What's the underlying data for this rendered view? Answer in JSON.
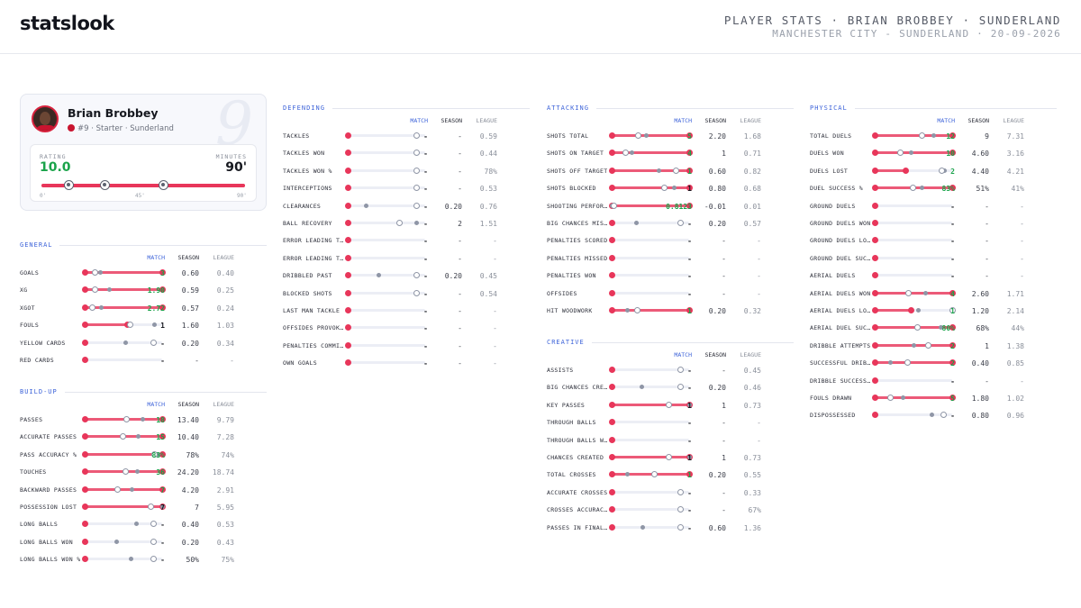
{
  "header": {
    "logo": "statslook",
    "title": "PLAYER STATS · BRIAN BROBBEY · SUNDERLAND",
    "subtitle": "MANCHESTER CITY - SUNDERLAND · 20-09-2026"
  },
  "player": {
    "name": "Brian Brobbey",
    "number": "9",
    "meta": "#9 · Starter · Sunderland",
    "rating_label": "RATING",
    "rating": "10.0",
    "minutes_label": "MINUTES",
    "minutes": "90'",
    "timeline_ticks": [
      "0'",
      "45'",
      "90'"
    ],
    "timeline_fill": 1.0,
    "goal_minutes": [
      12,
      28,
      54
    ],
    "icons": [
      "avatar",
      "club-crest-icon",
      "ball-icon"
    ]
  },
  "columns": {
    "match": "MATCH",
    "season": "SEASON",
    "league": "LEAGUE"
  },
  "colors": {
    "accent_blue": "#3d63d9",
    "bar_red": "#e8365a",
    "positive_green": "#1aa34a"
  },
  "sections": {
    "general": {
      "title": "GENERAL",
      "rows": [
        {
          "label": "GOALS",
          "match": "3",
          "season": "0.60",
          "league": "0.40",
          "good": true,
          "m": 1.0,
          "s": 0.2,
          "l": 0.13
        },
        {
          "label": "XG",
          "match": "1.90",
          "season": "0.59",
          "league": "0.25",
          "good": true,
          "m": 1.0,
          "s": 0.31,
          "l": 0.13
        },
        {
          "label": "XGOT",
          "match": "2.72",
          "season": "0.57",
          "league": "0.24",
          "good": true,
          "m": 1.0,
          "s": 0.21,
          "l": 0.09
        },
        {
          "label": "FOULS",
          "match": "1",
          "season": "1.60",
          "league": "1.03",
          "good": false,
          "m": 0.55,
          "s": 0.9,
          "l": 0.58
        },
        {
          "label": "YELLOW CARDS",
          "match": "-",
          "season": "0.20",
          "league": "0.34",
          "good": false,
          "m": 0,
          "s": 0.52,
          "l": 0.88
        },
        {
          "label": "RED CARDS",
          "match": "-",
          "season": "-",
          "league": "-",
          "good": false,
          "m": 0,
          "s": null,
          "l": null
        }
      ]
    },
    "buildup": {
      "title": "BUILD-UP",
      "rows": [
        {
          "label": "PASSES",
          "match": "18",
          "season": "13.40",
          "league": "9.79",
          "good": true,
          "m": 1.0,
          "s": 0.74,
          "l": 0.54
        },
        {
          "label": "ACCURATE PASSES",
          "match": "15",
          "season": "10.40",
          "league": "7.28",
          "good": true,
          "m": 1.0,
          "s": 0.69,
          "l": 0.49
        },
        {
          "label": "PASS ACCURACY %",
          "match": "83%",
          "season": "78%",
          "league": "74%",
          "good": true,
          "m": 1.0,
          "s": 0.94,
          "l": 0.89
        },
        {
          "label": "TOUCHES",
          "match": "36",
          "season": "24.20",
          "league": "18.74",
          "good": true,
          "m": 1.0,
          "s": 0.67,
          "l": 0.52
        },
        {
          "label": "BACKWARD PASSES",
          "match": "7",
          "season": "4.20",
          "league": "2.91",
          "good": true,
          "m": 1.0,
          "s": 0.6,
          "l": 0.42
        },
        {
          "label": "POSSESSION LOST",
          "match": "7",
          "season": "7",
          "league": "5.95",
          "good": false,
          "m": 1.0,
          "s": 1.0,
          "l": 0.85
        },
        {
          "label": "LONG BALLS",
          "match": "-",
          "season": "0.40",
          "league": "0.53",
          "good": false,
          "m": 0,
          "s": 0.66,
          "l": 0.88
        },
        {
          "label": "LONG BALLS WON",
          "match": "-",
          "season": "0.20",
          "league": "0.43",
          "good": false,
          "m": 0,
          "s": 0.41,
          "l": 0.88
        },
        {
          "label": "LONG BALLS WON %",
          "match": "-",
          "season": "50%",
          "league": "75%",
          "good": false,
          "m": 0,
          "s": 0.59,
          "l": 0.88
        }
      ]
    },
    "defending": {
      "title": "DEFENDING",
      "rows": [
        {
          "label": "TACKLES",
          "match": "-",
          "season": "-",
          "league": "0.59",
          "good": false,
          "m": 0,
          "s": null,
          "l": 0.88
        },
        {
          "label": "TACKLES WON",
          "match": "-",
          "season": "-",
          "league": "0.44",
          "good": false,
          "m": 0,
          "s": null,
          "l": 0.88
        },
        {
          "label": "TACKLES WON %",
          "match": "-",
          "season": "-",
          "league": "78%",
          "good": false,
          "m": 0,
          "s": null,
          "l": 0.88
        },
        {
          "label": "INTERCEPTIONS",
          "match": "-",
          "season": "-",
          "league": "0.53",
          "good": false,
          "m": 0,
          "s": null,
          "l": 0.88
        },
        {
          "label": "CLEARANCES",
          "match": "-",
          "season": "0.20",
          "league": "0.76",
          "good": false,
          "m": 0,
          "s": 0.23,
          "l": 0.88
        },
        {
          "label": "BALL RECOVERY",
          "match": "-",
          "season": "2",
          "league": "1.51",
          "good": false,
          "m": 0,
          "s": 0.88,
          "l": 0.66
        },
        {
          "label": "ERROR LEADING T…",
          "match": "-",
          "season": "-",
          "league": "-",
          "good": false,
          "m": 0,
          "s": null,
          "l": null
        },
        {
          "label": "ERROR LEADING T…",
          "match": "-",
          "season": "-",
          "league": "-",
          "good": false,
          "m": 0,
          "s": null,
          "l": null
        },
        {
          "label": "DRIBBLED PAST",
          "match": "-",
          "season": "0.20",
          "league": "0.45",
          "good": false,
          "m": 0,
          "s": 0.39,
          "l": 0.88
        },
        {
          "label": "BLOCKED SHOTS",
          "match": "-",
          "season": "-",
          "league": "0.54",
          "good": false,
          "m": 0,
          "s": null,
          "l": 0.88
        },
        {
          "label": "LAST MAN TACKLE",
          "match": "-",
          "season": "-",
          "league": "-",
          "good": false,
          "m": 0,
          "s": null,
          "l": null
        },
        {
          "label": "OFFSIDES PROVOK…",
          "match": "-",
          "season": "-",
          "league": "-",
          "good": false,
          "m": 0,
          "s": null,
          "l": null
        },
        {
          "label": "PENALTIES COMMI…",
          "match": "-",
          "season": "-",
          "league": "-",
          "good": false,
          "m": 0,
          "s": null,
          "l": null
        },
        {
          "label": "OWN GOALS",
          "match": "-",
          "season": "-",
          "league": "-",
          "good": false,
          "m": 0,
          "s": null,
          "l": null
        }
      ]
    },
    "attacking": {
      "title": "ATTACKING",
      "rows": [
        {
          "label": "SHOTS TOTAL",
          "match": "5",
          "season": "2.20",
          "league": "1.68",
          "good": true,
          "m": 1.0,
          "s": 0.44,
          "l": 0.34
        },
        {
          "label": "SHOTS ON TARGET",
          "match": "4",
          "season": "1",
          "league": "0.71",
          "good": true,
          "m": 1.0,
          "s": 0.25,
          "l": 0.18
        },
        {
          "label": "SHOTS OFF TARGET",
          "match": "1",
          "season": "0.60",
          "league": "0.82",
          "good": true,
          "m": 1.0,
          "s": 0.6,
          "l": 0.82
        },
        {
          "label": "SHOTS BLOCKED",
          "match": "1",
          "season": "0.80",
          "league": "0.68",
          "good": false,
          "m": 1.0,
          "s": 0.8,
          "l": 0.68
        },
        {
          "label": "SHOOTING PERFOR…",
          "match": "0.8123",
          "season": "-0.01",
          "league": "0.01",
          "good": true,
          "m": 1.0,
          "s": 0.0,
          "l": 0.02
        },
        {
          "label": "BIG CHANCES MIS…",
          "match": "-",
          "season": "0.20",
          "league": "0.57",
          "good": false,
          "m": 0,
          "s": 0.31,
          "l": 0.88
        },
        {
          "label": "PENALTIES SCORED",
          "match": "-",
          "season": "-",
          "league": "-",
          "good": false,
          "m": 0,
          "s": null,
          "l": null
        },
        {
          "label": "PENALTIES MISSED",
          "match": "-",
          "season": "-",
          "league": "-",
          "good": false,
          "m": 0,
          "s": null,
          "l": null
        },
        {
          "label": "PENALTIES WON",
          "match": "-",
          "season": "-",
          "league": "-",
          "good": false,
          "m": 0,
          "s": null,
          "l": null
        },
        {
          "label": "OFFSIDES",
          "match": "-",
          "season": "-",
          "league": "-",
          "good": false,
          "m": 0,
          "s": null,
          "l": null
        },
        {
          "label": "HIT WOODWORK",
          "match": "1",
          "season": "0.20",
          "league": "0.32",
          "good": true,
          "m": 1.0,
          "s": 0.2,
          "l": 0.32
        }
      ]
    },
    "creative": {
      "title": "CREATIVE",
      "rows": [
        {
          "label": "ASSISTS",
          "match": "-",
          "season": "-",
          "league": "0.45",
          "good": false,
          "m": 0,
          "s": null,
          "l": 0.88
        },
        {
          "label": "BIG CHANCES CRE…",
          "match": "-",
          "season": "0.20",
          "league": "0.46",
          "good": false,
          "m": 0,
          "s": 0.38,
          "l": 0.88
        },
        {
          "label": "KEY PASSES",
          "match": "1",
          "season": "1",
          "league": "0.73",
          "good": false,
          "m": 1.0,
          "s": 1.0,
          "l": 0.73
        },
        {
          "label": "THROUGH BALLS",
          "match": "-",
          "season": "-",
          "league": "-",
          "good": false,
          "m": 0,
          "s": null,
          "l": null
        },
        {
          "label": "THROUGH BALLS W…",
          "match": "-",
          "season": "-",
          "league": "-",
          "good": false,
          "m": 0,
          "s": null,
          "l": null
        },
        {
          "label": "CHANCES CREATED",
          "match": "1",
          "season": "1",
          "league": "0.73",
          "good": false,
          "m": 1.0,
          "s": 1.0,
          "l": 0.73
        },
        {
          "label": "TOTAL CROSSES",
          "match": "1",
          "season": "0.20",
          "league": "0.55",
          "good": true,
          "m": 1.0,
          "s": 0.2,
          "l": 0.55
        },
        {
          "label": "ACCURATE CROSSES",
          "match": "-",
          "season": "-",
          "league": "0.33",
          "good": false,
          "m": 0,
          "s": null,
          "l": 0.88
        },
        {
          "label": "CROSSES ACCURAC…",
          "match": "-",
          "season": "-",
          "league": "67%",
          "good": false,
          "m": 0,
          "s": null,
          "l": 0.88
        },
        {
          "label": "PASSES IN FINAL…",
          "match": "-",
          "season": "0.60",
          "league": "1.36",
          "good": false,
          "m": 0,
          "s": 0.39,
          "l": 0.88
        }
      ]
    },
    "physical": {
      "title": "PHYSICAL",
      "rows": [
        {
          "label": "TOTAL DUELS",
          "match": "12",
          "season": "9",
          "league": "7.31",
          "good": true,
          "m": 1.0,
          "s": 0.75,
          "l": 0.61
        },
        {
          "label": "DUELS WON",
          "match": "10",
          "season": "4.60",
          "league": "3.16",
          "good": true,
          "m": 1.0,
          "s": 0.46,
          "l": 0.32
        },
        {
          "label": "DUELS LOST",
          "match": "2",
          "season": "4.40",
          "league": "4.21",
          "good": true,
          "m": 0.4,
          "s": 0.9,
          "l": 0.86
        },
        {
          "label": "DUEL SUCCESS %",
          "match": "83%",
          "season": "51%",
          "league": "41%",
          "good": true,
          "m": 1.0,
          "s": 0.61,
          "l": 0.49
        },
        {
          "label": "GROUND DUELS",
          "match": "-",
          "season": "-",
          "league": "-",
          "good": false,
          "m": 0,
          "s": null,
          "l": null
        },
        {
          "label": "GROUND DUELS WON",
          "match": "-",
          "season": "-",
          "league": "-",
          "good": false,
          "m": 0,
          "s": null,
          "l": null
        },
        {
          "label": "GROUND DUELS LO…",
          "match": "-",
          "season": "-",
          "league": "-",
          "good": false,
          "m": 0,
          "s": null,
          "l": null
        },
        {
          "label": "GROUND DUEL SUC…",
          "match": "-",
          "season": "-",
          "league": "-",
          "good": false,
          "m": 0,
          "s": null,
          "l": null
        },
        {
          "label": "AERIAL DUELS",
          "match": "-",
          "season": "-",
          "league": "-",
          "good": false,
          "m": 0,
          "s": null,
          "l": null
        },
        {
          "label": "AERIAL DUELS WON",
          "match": "4",
          "season": "2.60",
          "league": "1.71",
          "good": true,
          "m": 1.0,
          "s": 0.65,
          "l": 0.43
        },
        {
          "label": "AERIAL DUELS LO…",
          "match": "1",
          "season": "1.20",
          "league": "2.14",
          "good": true,
          "m": 0.47,
          "s": 0.56,
          "l": 1.0
        },
        {
          "label": "AERIAL DUEL SUC…",
          "match": "80%",
          "season": "68%",
          "league": "44%",
          "good": true,
          "m": 1.0,
          "s": 0.85,
          "l": 0.55
        },
        {
          "label": "DRIBBLE ATTEMPTS",
          "match": "2",
          "season": "1",
          "league": "1.38",
          "good": true,
          "m": 1.0,
          "s": 0.5,
          "l": 0.69
        },
        {
          "label": "SUCCESSFUL DRIB…",
          "match": "2",
          "season": "0.40",
          "league": "0.85",
          "good": true,
          "m": 1.0,
          "s": 0.2,
          "l": 0.42
        },
        {
          "label": "DRIBBLE SUCCESS…",
          "match": "-",
          "season": "-",
          "league": "-",
          "good": false,
          "m": 0,
          "s": null,
          "l": null
        },
        {
          "label": "FOULS DRAWN",
          "match": "5",
          "season": "1.80",
          "league": "1.02",
          "good": true,
          "m": 1.0,
          "s": 0.36,
          "l": 0.2
        },
        {
          "label": "DISPOSSESSED",
          "match": "-",
          "season": "0.80",
          "league": "0.96",
          "good": false,
          "m": 0,
          "s": 0.73,
          "l": 0.88
        }
      ]
    }
  }
}
